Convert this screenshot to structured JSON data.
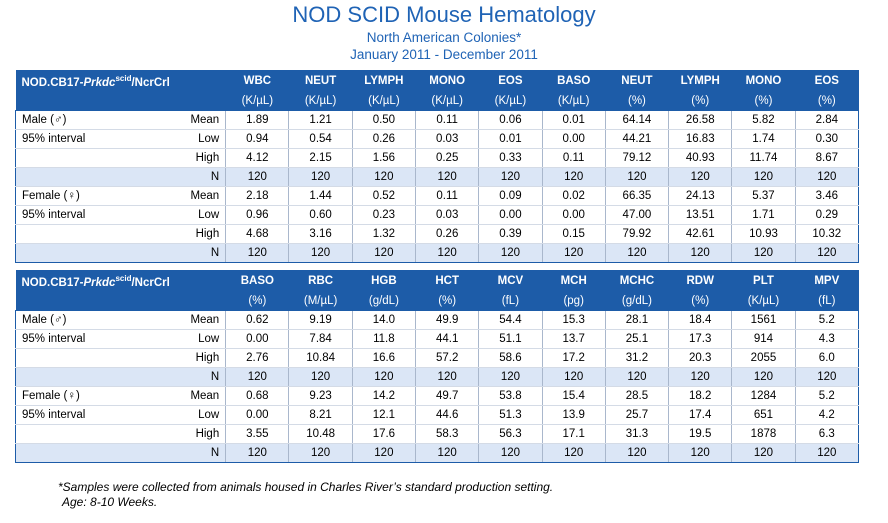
{
  "header": {
    "title": "NOD SCID Mouse Hematology",
    "subtitle": "North American Colonies*",
    "date_range": "January 2011 - December 2011"
  },
  "strain": {
    "prefix": "NOD.CB17-",
    "gene": "Prkdc",
    "superscript": "scid",
    "suffix": "/NcrCrl"
  },
  "tables": [
    {
      "columns": [
        {
          "name": "WBC",
          "unit": "(K/µL)"
        },
        {
          "name": "NEUT",
          "unit": "(K/µL)"
        },
        {
          "name": "LYMPH",
          "unit": "(K/µL)"
        },
        {
          "name": "MONO",
          "unit": "(K/µL)"
        },
        {
          "name": "EOS",
          "unit": "(K/µL)"
        },
        {
          "name": "BASO",
          "unit": "(K/µL)"
        },
        {
          "name": "NEUT",
          "unit": "(%)"
        },
        {
          "name": "LYMPH",
          "unit": "(%)"
        },
        {
          "name": "MONO",
          "unit": "(%)"
        },
        {
          "name": "EOS",
          "unit": "(%)"
        }
      ],
      "groups": [
        {
          "sex": "Male (♂)",
          "interval_label": "95% interval",
          "rows": [
            {
              "stat": "Mean",
              "values": [
                "1.89",
                "1.21",
                "0.50",
                "0.11",
                "0.06",
                "0.01",
                "64.14",
                "26.58",
                "5.82",
                "2.84"
              ]
            },
            {
              "stat": "Low",
              "values": [
                "0.94",
                "0.54",
                "0.26",
                "0.03",
                "0.01",
                "0.00",
                "44.21",
                "16.83",
                "1.74",
                "0.30"
              ]
            },
            {
              "stat": "High",
              "values": [
                "4.12",
                "2.15",
                "1.56",
                "0.25",
                "0.33",
                "0.11",
                "79.12",
                "40.93",
                "11.74",
                "8.67"
              ]
            },
            {
              "stat": "N",
              "values": [
                "120",
                "120",
                "120",
                "120",
                "120",
                "120",
                "120",
                "120",
                "120",
                "120"
              ]
            }
          ]
        },
        {
          "sex": "Female (♀)",
          "interval_label": "95% interval",
          "rows": [
            {
              "stat": "Mean",
              "values": [
                "2.18",
                "1.44",
                "0.52",
                "0.11",
                "0.09",
                "0.02",
                "66.35",
                "24.13",
                "5.37",
                "3.46"
              ]
            },
            {
              "stat": "Low",
              "values": [
                "0.96",
                "0.60",
                "0.23",
                "0.03",
                "0.00",
                "0.00",
                "47.00",
                "13.51",
                "1.71",
                "0.29"
              ]
            },
            {
              "stat": "High",
              "values": [
                "4.68",
                "3.16",
                "1.32",
                "0.26",
                "0.39",
                "0.15",
                "79.92",
                "42.61",
                "10.93",
                "10.32"
              ]
            },
            {
              "stat": "N",
              "values": [
                "120",
                "120",
                "120",
                "120",
                "120",
                "120",
                "120",
                "120",
                "120",
                "120"
              ]
            }
          ]
        }
      ]
    },
    {
      "columns": [
        {
          "name": "BASO",
          "unit": "(%)"
        },
        {
          "name": "RBC",
          "unit": "(M/µL)"
        },
        {
          "name": "HGB",
          "unit": "(g/dL)"
        },
        {
          "name": "HCT",
          "unit": "(%)"
        },
        {
          "name": "MCV",
          "unit": "(fL)"
        },
        {
          "name": "MCH",
          "unit": "(pg)"
        },
        {
          "name": "MCHC",
          "unit": "(g/dL)"
        },
        {
          "name": "RDW",
          "unit": "(%)"
        },
        {
          "name": "PLT",
          "unit": "(K/µL)"
        },
        {
          "name": "MPV",
          "unit": "(fL)"
        }
      ],
      "groups": [
        {
          "sex": "Male (♂)",
          "interval_label": "95% interval",
          "rows": [
            {
              "stat": "Mean",
              "values": [
                "0.62",
                "9.19",
                "14.0",
                "49.9",
                "54.4",
                "15.3",
                "28.1",
                "18.4",
                "1561",
                "5.2"
              ]
            },
            {
              "stat": "Low",
              "values": [
                "0.00",
                "7.84",
                "11.8",
                "44.1",
                "51.1",
                "13.7",
                "25.1",
                "17.3",
                "914",
                "4.3"
              ]
            },
            {
              "stat": "High",
              "values": [
                "2.76",
                "10.84",
                "16.6",
                "57.2",
                "58.6",
                "17.2",
                "31.2",
                "20.3",
                "2055",
                "6.0"
              ]
            },
            {
              "stat": "N",
              "values": [
                "120",
                "120",
                "120",
                "120",
                "120",
                "120",
                "120",
                "120",
                "120",
                "120"
              ]
            }
          ]
        },
        {
          "sex": "Female (♀)",
          "interval_label": "95% interval",
          "rows": [
            {
              "stat": "Mean",
              "values": [
                "0.68",
                "9.23",
                "14.2",
                "49.7",
                "53.8",
                "15.4",
                "28.5",
                "18.2",
                "1284",
                "5.2"
              ]
            },
            {
              "stat": "Low",
              "values": [
                "0.00",
                "8.21",
                "12.1",
                "44.6",
                "51.3",
                "13.9",
                "25.7",
                "17.4",
                "651",
                "4.2"
              ]
            },
            {
              "stat": "High",
              "values": [
                "3.55",
                "10.48",
                "17.6",
                "58.3",
                "56.3",
                "17.1",
                "31.3",
                "19.5",
                "1878",
                "6.3"
              ]
            },
            {
              "stat": "N",
              "values": [
                "120",
                "120",
                "120",
                "120",
                "120",
                "120",
                "120",
                "120",
                "120",
                "120"
              ]
            }
          ]
        }
      ]
    }
  ],
  "footnote": {
    "line1": "*Samples were collected from animals housed in Charles River’s standard production setting.",
    "line2": "Age: 8-10 Weeks."
  }
}
